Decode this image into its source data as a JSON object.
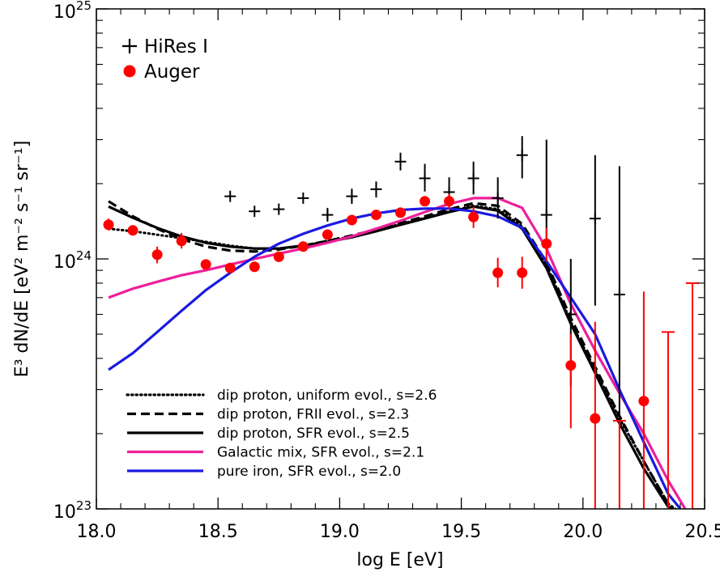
{
  "chart_data": {
    "type": "line",
    "xlabel": "log E [eV]",
    "ylabel": "E³ dN/dE [eV² m⁻² s⁻¹ sr⁻¹]",
    "xlim": [
      18.0,
      20.5
    ],
    "ylim": [
      1e+23,
      1e+25
    ],
    "y_scale": "log",
    "x_ticks": [
      "18.0",
      "18.5",
      "19.0",
      "19.5",
      "20.0",
      "20.5"
    ],
    "y_ticks": [
      {
        "value": 1e+23,
        "base": "10",
        "exp": "23"
      },
      {
        "value": 1e+24,
        "base": "10",
        "exp": "24"
      },
      {
        "value": 1e+25,
        "base": "10",
        "exp": "25"
      }
    ],
    "data_series": [
      {
        "name": "HiRes I",
        "marker": "plus",
        "color": "#000000",
        "points": [
          {
            "x": 18.55,
            "y": 1.78e+24,
            "lo": 1.78e+24,
            "hi": 1.78e+24
          },
          {
            "x": 18.65,
            "y": 1.55e+24,
            "lo": 1.55e+24,
            "hi": 1.55e+24
          },
          {
            "x": 18.75,
            "y": 1.58e+24,
            "lo": 1.58e+24,
            "hi": 1.58e+24
          },
          {
            "x": 18.85,
            "y": 1.75e+24,
            "lo": 1.75e+24,
            "hi": 1.75e+24
          },
          {
            "x": 18.95,
            "y": 1.5e+24,
            "lo": 1.41e+24,
            "hi": 1.6e+24
          },
          {
            "x": 19.05,
            "y": 1.78e+24,
            "lo": 1.66e+24,
            "hi": 1.91e+24
          },
          {
            "x": 19.15,
            "y": 1.9e+24,
            "lo": 1.76e+24,
            "hi": 2.04e+24
          },
          {
            "x": 19.25,
            "y": 2.45e+24,
            "lo": 2.26e+24,
            "hi": 2.66e+24
          },
          {
            "x": 19.35,
            "y": 2.1e+24,
            "lo": 1.86e+24,
            "hi": 2.4e+24
          },
          {
            "x": 19.45,
            "y": 1.85e+24,
            "lo": 1.61e+24,
            "hi": 2.12e+24
          },
          {
            "x": 19.55,
            "y": 2.1e+24,
            "lo": 1.81e+24,
            "hi": 2.45e+24
          },
          {
            "x": 19.65,
            "y": 1.75e+24,
            "lo": 1.45e+24,
            "hi": 2.12e+24
          },
          {
            "x": 19.75,
            "y": 2.6e+24,
            "lo": 2.1e+24,
            "hi": 3.1e+24
          },
          {
            "x": 19.85,
            "y": 1.5e+24,
            "lo": 1.1e+24,
            "hi": 3e+24
          },
          {
            "x": 19.95,
            "y": 6e+23,
            "lo": 3.1e+23,
            "hi": 1e+24
          },
          {
            "x": 20.05,
            "y": 1.45e+24,
            "lo": 6.5e+23,
            "hi": 2.6e+24
          },
          {
            "x": 20.15,
            "y": 7.2e+23,
            "lo": 2.3e+23,
            "hi": 2.35e+24
          }
        ]
      },
      {
        "name": "Auger",
        "marker": "filled-circle",
        "color": "#ff0000",
        "points": [
          {
            "x": 18.05,
            "y": 1.37e+24,
            "lo": 1.3e+24,
            "hi": 1.45e+24
          },
          {
            "x": 18.15,
            "y": 1.3e+24,
            "lo": 1.24e+24,
            "hi": 1.36e+24
          },
          {
            "x": 18.25,
            "y": 1.04e+24,
            "lo": 9.6e+23,
            "hi": 1.12e+24
          },
          {
            "x": 18.35,
            "y": 1.18e+24,
            "lo": 1.1e+24,
            "hi": 1.27e+24
          },
          {
            "x": 18.45,
            "y": 9.5e+23,
            "lo": 9.5e+23,
            "hi": 9.5e+23
          },
          {
            "x": 18.55,
            "y": 9.2e+23,
            "lo": 9.2e+23,
            "hi": 9.2e+23
          },
          {
            "x": 18.65,
            "y": 9.3e+23,
            "lo": 9.3e+23,
            "hi": 9.3e+23
          },
          {
            "x": 18.75,
            "y": 1.02e+24,
            "lo": 1.02e+24,
            "hi": 1.02e+24
          },
          {
            "x": 18.85,
            "y": 1.12e+24,
            "lo": 1.12e+24,
            "hi": 1.12e+24
          },
          {
            "x": 18.95,
            "y": 1.25e+24,
            "lo": 1.25e+24,
            "hi": 1.25e+24
          },
          {
            "x": 19.05,
            "y": 1.43e+24,
            "lo": 1.43e+24,
            "hi": 1.43e+24
          },
          {
            "x": 19.15,
            "y": 1.5e+24,
            "lo": 1.5e+24,
            "hi": 1.5e+24
          },
          {
            "x": 19.25,
            "y": 1.53e+24,
            "lo": 1.53e+24,
            "hi": 1.53e+24
          },
          {
            "x": 19.35,
            "y": 1.7e+24,
            "lo": 1.7e+24,
            "hi": 1.7e+24
          },
          {
            "x": 19.45,
            "y": 1.7e+24,
            "lo": 1.58e+24,
            "hi": 1.82e+24
          },
          {
            "x": 19.55,
            "y": 1.47e+24,
            "lo": 1.33e+24,
            "hi": 1.62e+24
          },
          {
            "x": 19.65,
            "y": 8.8e+23,
            "lo": 7.7e+23,
            "hi": 1.01e+24
          },
          {
            "x": 19.75,
            "y": 8.8e+23,
            "lo": 7.6e+23,
            "hi": 1.02e+24
          },
          {
            "x": 19.85,
            "y": 1.15e+24,
            "lo": 9.8e+23,
            "hi": 1.33e+24
          },
          {
            "x": 19.95,
            "y": 3.75e+23,
            "lo": 2.1e+23,
            "hi": 5e+23
          },
          {
            "x": 20.05,
            "y": 2.3e+23,
            "lo": 1e+23,
            "hi": 5.6e+23
          },
          {
            "x": 20.15,
            "y": null,
            "lo": 1e+23,
            "hi": 2.25e+23
          },
          {
            "x": 20.25,
            "y": 2.7e+23,
            "lo": 1e+23,
            "hi": 7.4e+23
          },
          {
            "x": 20.35,
            "y": null,
            "lo": 1e+23,
            "hi": 5.1e+23
          },
          {
            "x": 20.45,
            "y": null,
            "lo": 1e+23,
            "hi": 8e+23
          }
        ]
      }
    ],
    "model_series": [
      {
        "name": "dip proton, uniform evol., s=2.6",
        "color": "#000000",
        "dash": "dotted",
        "x": [
          18.05,
          18.15,
          18.25,
          18.35,
          18.45,
          18.55,
          18.65,
          18.75,
          18.85,
          18.95,
          19.05,
          19.15,
          19.25,
          19.35,
          19.45,
          19.55,
          19.65,
          19.75,
          19.85,
          19.95,
          20.05,
          20.15,
          20.25,
          20.35,
          20.38
        ],
        "y": [
          1.32e+24,
          1.29e+24,
          1.25e+24,
          1.21e+24,
          1.17e+24,
          1.13e+24,
          1.1e+24,
          1.1e+24,
          1.13e+24,
          1.18e+24,
          1.23e+24,
          1.3e+24,
          1.38e+24,
          1.46e+24,
          1.55e+24,
          1.63e+24,
          1.58e+24,
          1.35e+24,
          9.5e+23,
          5.6e+23,
          3.6e+23,
          2.3e+23,
          1.55e+23,
          1.05e+23,
          1e+23
        ]
      },
      {
        "name": "dip proton, FRII evol., s=2.3",
        "color": "#000000",
        "dash": "dashed",
        "x": [
          18.05,
          18.15,
          18.25,
          18.35,
          18.45,
          18.55,
          18.65,
          18.75,
          18.85,
          18.95,
          19.05,
          19.15,
          19.25,
          19.35,
          19.45,
          19.55,
          19.65,
          19.75,
          19.85,
          19.95,
          20.05,
          20.15,
          20.25,
          20.35,
          20.37
        ],
        "y": [
          1.7e+24,
          1.48e+24,
          1.32e+24,
          1.2e+24,
          1.12e+24,
          1.08e+24,
          1.07e+24,
          1.09e+24,
          1.13e+24,
          1.18e+24,
          1.24e+24,
          1.31e+24,
          1.39e+24,
          1.48e+24,
          1.58e+24,
          1.67e+24,
          1.63e+24,
          1.38e+24,
          9.7e+23,
          5.8e+23,
          3.7e+23,
          2.35e+23,
          1.55e+23,
          1.05e+23,
          1e+23
        ]
      },
      {
        "name": "dip proton, SFR evol., s=2.5",
        "color": "#000000",
        "dash": "solid",
        "x": [
          18.05,
          18.15,
          18.25,
          18.35,
          18.45,
          18.55,
          18.65,
          18.75,
          18.85,
          18.95,
          19.05,
          19.15,
          19.25,
          19.35,
          19.45,
          19.55,
          19.65,
          19.75,
          19.85,
          19.95,
          20.05,
          20.15,
          20.25,
          20.35,
          20.37
        ],
        "y": [
          1.62e+24,
          1.46e+24,
          1.33e+24,
          1.23e+24,
          1.16e+24,
          1.12e+24,
          1.1e+24,
          1.1e+24,
          1.13e+24,
          1.17e+24,
          1.22e+24,
          1.29e+24,
          1.37e+24,
          1.45e+24,
          1.54e+24,
          1.62e+24,
          1.56e+24,
          1.32e+24,
          9.2e+23,
          5.5e+23,
          3.5e+23,
          2.2e+23,
          1.45e+23,
          1.02e+23,
          1e+23
        ]
      },
      {
        "name": "Galactic mix, SFR evol., s=2.1",
        "color": "#ee1f9a",
        "dash": "solid",
        "x": [
          18.05,
          18.15,
          18.25,
          18.35,
          18.45,
          18.55,
          18.65,
          18.75,
          18.85,
          18.95,
          19.05,
          19.15,
          19.25,
          19.35,
          19.45,
          19.55,
          19.65,
          19.75,
          19.85,
          19.95,
          20.05,
          20.15,
          20.25,
          20.35,
          20.42
        ],
        "y": [
          7e+23,
          7.6e+23,
          8.1e+23,
          8.6e+23,
          9e+23,
          9.5e+23,
          1e+24,
          1.05e+24,
          1.1e+24,
          1.16e+24,
          1.23e+24,
          1.32e+24,
          1.42e+24,
          1.54e+24,
          1.66e+24,
          1.75e+24,
          1.75e+24,
          1.6e+24,
          1.1e+24,
          6.6e+23,
          4.3e+23,
          2.9e+23,
          2e+23,
          1.3e+23,
          1e+23
        ]
      },
      {
        "name": "pure iron, SFR evol., s=2.0",
        "color": "#1a1ae0",
        "dash": "solid",
        "x": [
          18.05,
          18.15,
          18.25,
          18.35,
          18.45,
          18.55,
          18.65,
          18.75,
          18.85,
          18.95,
          19.05,
          19.15,
          19.25,
          19.35,
          19.45,
          19.55,
          19.65,
          19.75,
          19.85,
          19.95,
          20.05,
          20.15,
          20.25,
          20.35,
          20.4
        ],
        "y": [
          3.6e+23,
          4.2e+23,
          5.1e+23,
          6.2e+23,
          7.5e+23,
          8.8e+23,
          1.02e+24,
          1.15e+24,
          1.26e+24,
          1.36e+24,
          1.45e+24,
          1.52e+24,
          1.57e+24,
          1.59e+24,
          1.59e+24,
          1.55e+24,
          1.48e+24,
          1.33e+24,
          9.8e+23,
          7e+23,
          5e+23,
          3e+23,
          1.85e+23,
          1.15e+23,
          1e+23
        ]
      }
    ]
  }
}
